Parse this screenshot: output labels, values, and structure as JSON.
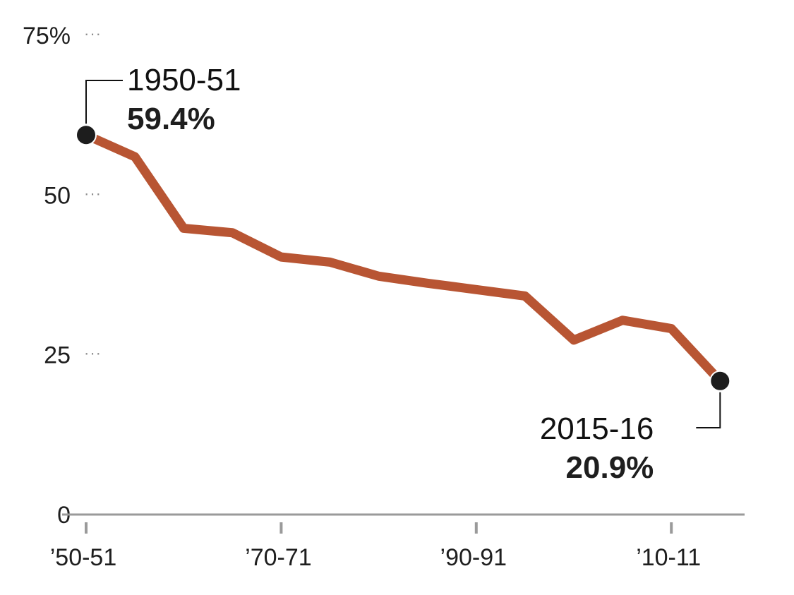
{
  "chart_data": {
    "type": "line",
    "x": [
      "1950-51",
      "1955-56",
      "1960-61",
      "1965-66",
      "1970-71",
      "1975-76",
      "1980-81",
      "1985-86",
      "1990-91",
      "1995-96",
      "2000-01",
      "2005-06",
      "2010-11",
      "2015-16"
    ],
    "series": [
      {
        "values": [
          59.4,
          56.0,
          44.8,
          44.1,
          40.3,
          39.5,
          37.3,
          36.2,
          35.2,
          34.2,
          27.3,
          30.4,
          29.1,
          20.9
        ]
      }
    ],
    "ylim": [
      0,
      75
    ],
    "yticks": [
      {
        "value": 75,
        "label": "75%"
      },
      {
        "value": 50,
        "label": "50"
      },
      {
        "value": 25,
        "label": "25"
      },
      {
        "value": 0,
        "label": "0"
      }
    ],
    "xticks": [
      {
        "index": 0,
        "label": "’50-51"
      },
      {
        "index": 4,
        "label": "’70-71"
      },
      {
        "index": 8,
        "label": "’90-91"
      },
      {
        "index": 12,
        "label": "’10-11"
      }
    ],
    "grid": false,
    "gridline_marker": "···",
    "annotations": [
      {
        "index": 0,
        "title": "1950-51",
        "value": "59.4%"
      },
      {
        "index": 13,
        "title": "2015-16",
        "value": "20.9%"
      }
    ],
    "colors": {
      "line": "#b85533",
      "marker": "#1d1d1d",
      "axis": "#9a9a9a"
    }
  }
}
